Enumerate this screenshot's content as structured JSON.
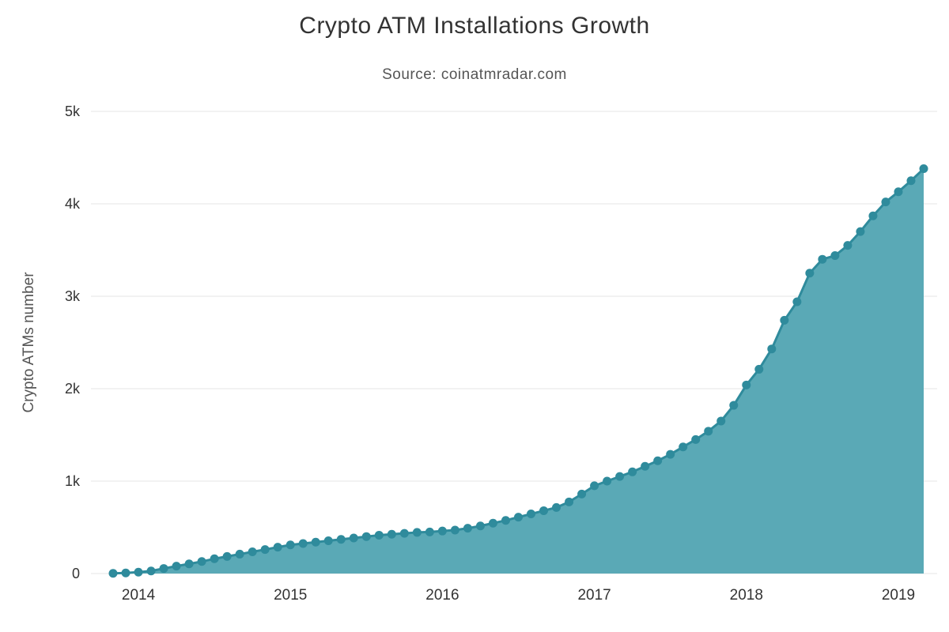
{
  "chart_data": {
    "type": "area",
    "title": "Crypto ATM Installations Growth",
    "subtitle": "Source: coinatmradar.com",
    "xlabel": "",
    "ylabel": "Crypto ATMs number",
    "ylim": [
      0,
      5000
    ],
    "grid": "horizontal",
    "legend": "none",
    "colors": {
      "line": "#2f8b9c",
      "fill": "#5aa9b6",
      "grid": "#e6e6e6",
      "axis_text": "#333333",
      "title_text": "#333333",
      "subtitle_text": "#555555",
      "ylabel_text": "#555555"
    },
    "y_ticks": [
      {
        "value": 0,
        "label": "0"
      },
      {
        "value": 1000,
        "label": "1k"
      },
      {
        "value": 2000,
        "label": "2k"
      },
      {
        "value": 3000,
        "label": "3k"
      },
      {
        "value": 4000,
        "label": "4k"
      },
      {
        "value": 5000,
        "label": "5k"
      }
    ],
    "x_ticks": [
      {
        "month": "2014-01",
        "label": "2014"
      },
      {
        "month": "2015-01",
        "label": "2015"
      },
      {
        "month": "2016-01",
        "label": "2016"
      },
      {
        "month": "2017-01",
        "label": "2017"
      },
      {
        "month": "2018-01",
        "label": "2018"
      },
      {
        "month": "2019-01",
        "label": "2019"
      }
    ],
    "series": [
      {
        "name": "Crypto ATMs number",
        "x": [
          "2013-11",
          "2013-12",
          "2014-01",
          "2014-02",
          "2014-03",
          "2014-04",
          "2014-05",
          "2014-06",
          "2014-07",
          "2014-08",
          "2014-09",
          "2014-10",
          "2014-11",
          "2014-12",
          "2015-01",
          "2015-02",
          "2015-03",
          "2015-04",
          "2015-05",
          "2015-06",
          "2015-07",
          "2015-08",
          "2015-09",
          "2015-10",
          "2015-11",
          "2015-12",
          "2016-01",
          "2016-02",
          "2016-03",
          "2016-04",
          "2016-05",
          "2016-06",
          "2016-07",
          "2016-08",
          "2016-09",
          "2016-10",
          "2016-11",
          "2016-12",
          "2017-01",
          "2017-02",
          "2017-03",
          "2017-04",
          "2017-05",
          "2017-06",
          "2017-07",
          "2017-08",
          "2017-09",
          "2017-10",
          "2017-11",
          "2017-12",
          "2018-01",
          "2018-02",
          "2018-03",
          "2018-04",
          "2018-05",
          "2018-06",
          "2018-07",
          "2018-08",
          "2018-09",
          "2018-10",
          "2018-11",
          "2018-12",
          "2019-01",
          "2019-02",
          "2019-03"
        ],
        "values": [
          2,
          6,
          15,
          28,
          55,
          80,
          105,
          130,
          160,
          185,
          210,
          235,
          260,
          285,
          310,
          325,
          340,
          355,
          370,
          385,
          400,
          415,
          425,
          435,
          445,
          450,
          460,
          470,
          490,
          515,
          545,
          575,
          610,
          645,
          680,
          715,
          775,
          860,
          950,
          1000,
          1050,
          1100,
          1160,
          1220,
          1290,
          1370,
          1450,
          1540,
          1650,
          1820,
          2040,
          2210,
          2430,
          2740,
          2940,
          3250,
          3400,
          3440,
          3550,
          3700,
          3870,
          4020,
          4130,
          4250,
          4380
        ]
      }
    ]
  }
}
